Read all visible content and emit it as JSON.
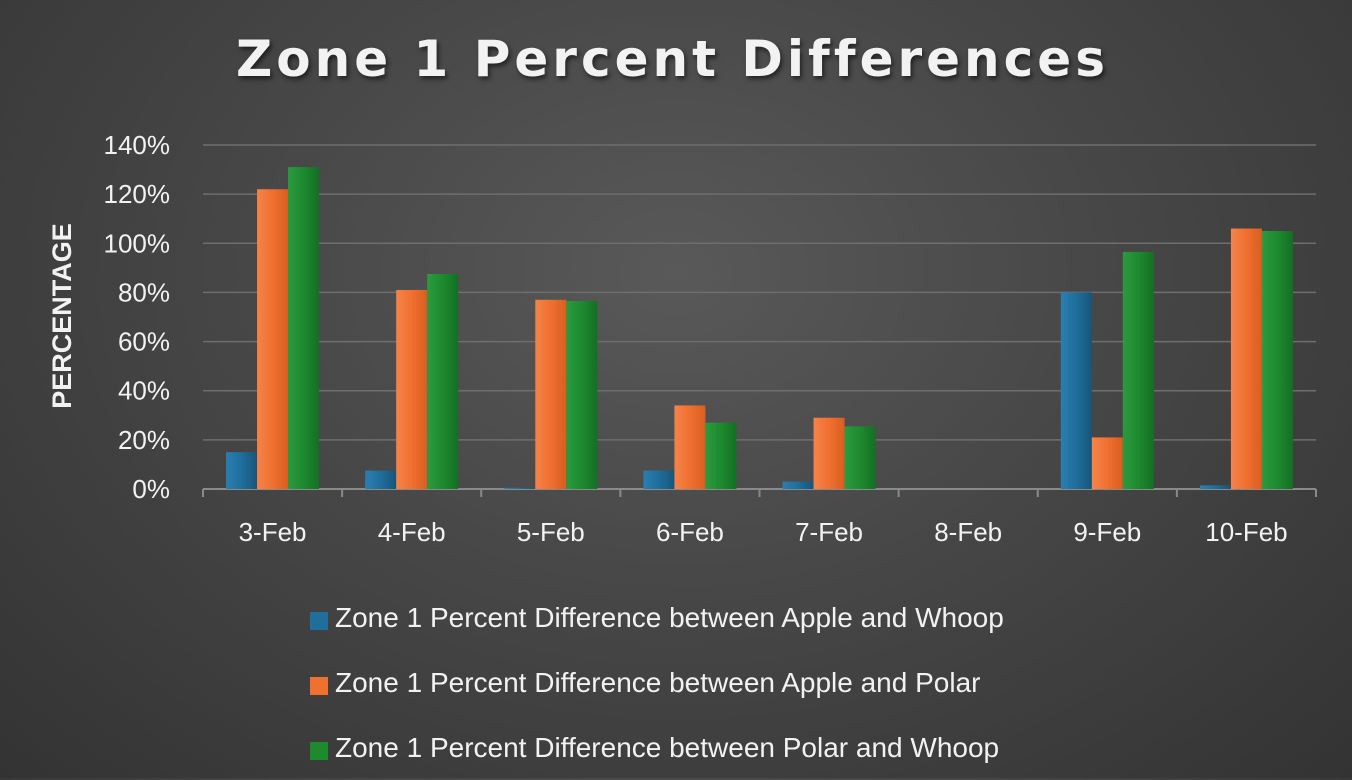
{
  "chart_data": {
    "type": "bar",
    "title": "Zone 1 Percent Differences",
    "ylabel": "PERCENTAGE",
    "xlabel": "",
    "categories": [
      "3-Feb",
      "4-Feb",
      "5-Feb",
      "6-Feb",
      "7-Feb",
      "8-Feb",
      "9-Feb",
      "10-Feb"
    ],
    "yticks": [
      "0%",
      "20%",
      "40%",
      "60%",
      "80%",
      "100%",
      "120%",
      "140%"
    ],
    "ylim": [
      0,
      140
    ],
    "grid": true,
    "legend_position": "bottom",
    "series": [
      {
        "name": "Zone 1 Percent Difference between Apple and Whoop",
        "color": "#1f6e9c",
        "values": [
          15,
          7.5,
          0.5,
          7.5,
          3,
          0,
          80,
          1.5
        ]
      },
      {
        "name": "Zone 1 Percent Difference between Apple and Polar",
        "color": "#f07030",
        "values": [
          122,
          81,
          77,
          34,
          29,
          0,
          21,
          106
        ]
      },
      {
        "name": "Zone 1 Percent Difference between Polar and Whoop",
        "color": "#1e8a30",
        "values": [
          131,
          87.5,
          76.5,
          27,
          25.5,
          0,
          96.5,
          105
        ]
      }
    ]
  }
}
